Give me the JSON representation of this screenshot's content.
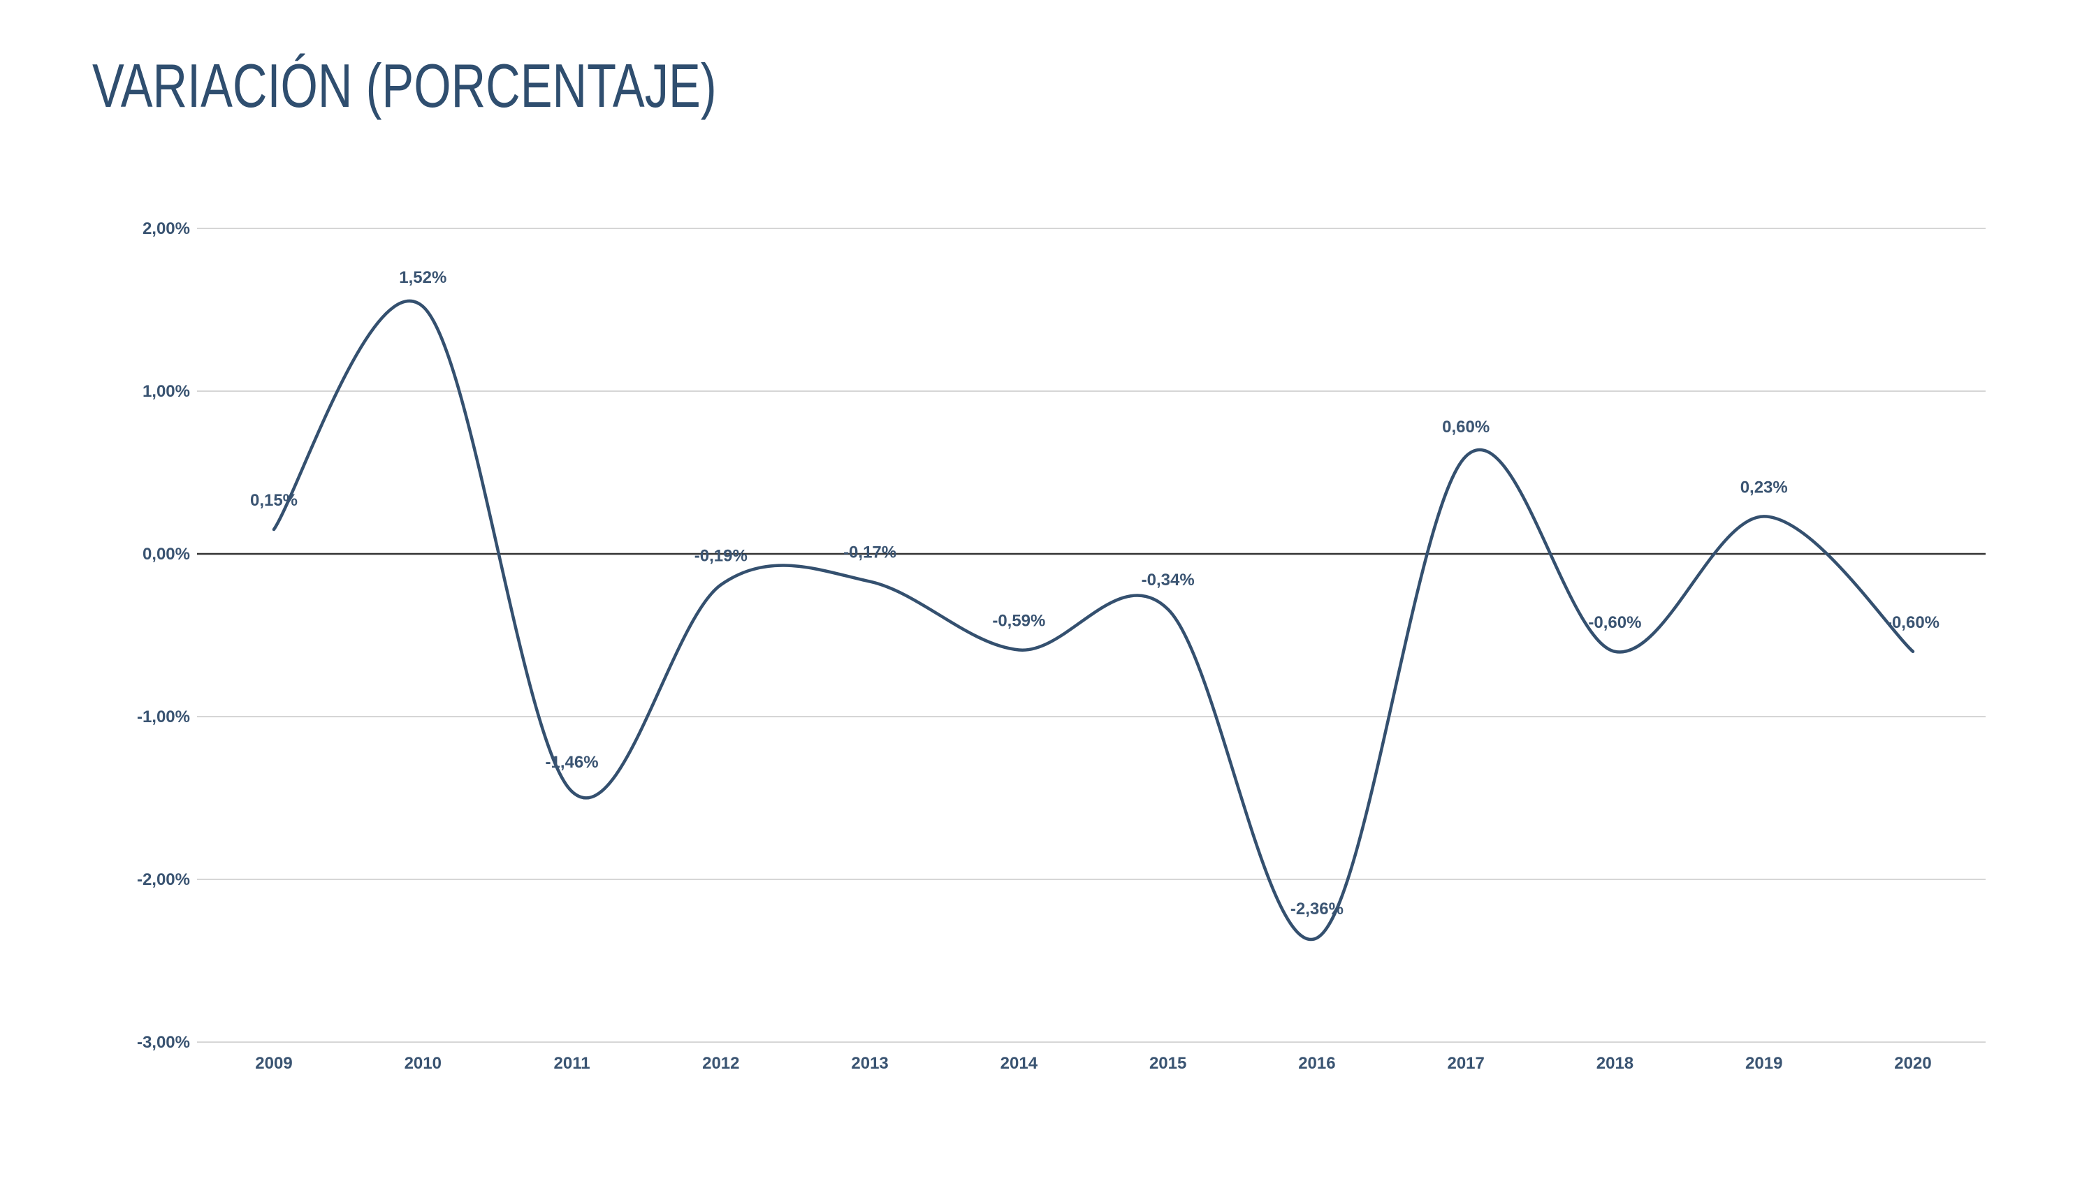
{
  "title": "VARIACIÓN (PORCENTAJE)",
  "colors": {
    "line": "#34506f",
    "grid": "#d6d6d6",
    "zero": "#333333",
    "text": "#3a5472"
  },
  "chart_data": {
    "type": "line",
    "title": "VARIACIÓN (PORCENTAJE)",
    "xlabel": "",
    "ylabel": "",
    "categories": [
      "2009",
      "2010",
      "2011",
      "2012",
      "2013",
      "2014",
      "2015",
      "2016",
      "2017",
      "2018",
      "2019",
      "2020"
    ],
    "values": [
      0.15,
      1.52,
      -1.46,
      -0.19,
      -0.17,
      -0.59,
      -0.34,
      -2.36,
      0.6,
      -0.6,
      0.23,
      -0.6
    ],
    "data_labels": [
      "0,15%",
      "1,52%",
      "-1,46%",
      "-0,19%",
      "-0,17%",
      "-0,59%",
      "-0,34%",
      "-2,36%",
      "0,60%",
      "-0,60%",
      "0,23%",
      "-0,60%"
    ],
    "ylim": [
      -3,
      2
    ],
    "yticks": [
      2,
      1,
      0,
      -1,
      -2,
      -3
    ],
    "ytick_labels": [
      "2,00%",
      "1,00%",
      "0,00%",
      "-1,00%",
      "-2,00%",
      "-3,00%"
    ],
    "grid": true,
    "smooth": true,
    "legend": "none"
  }
}
